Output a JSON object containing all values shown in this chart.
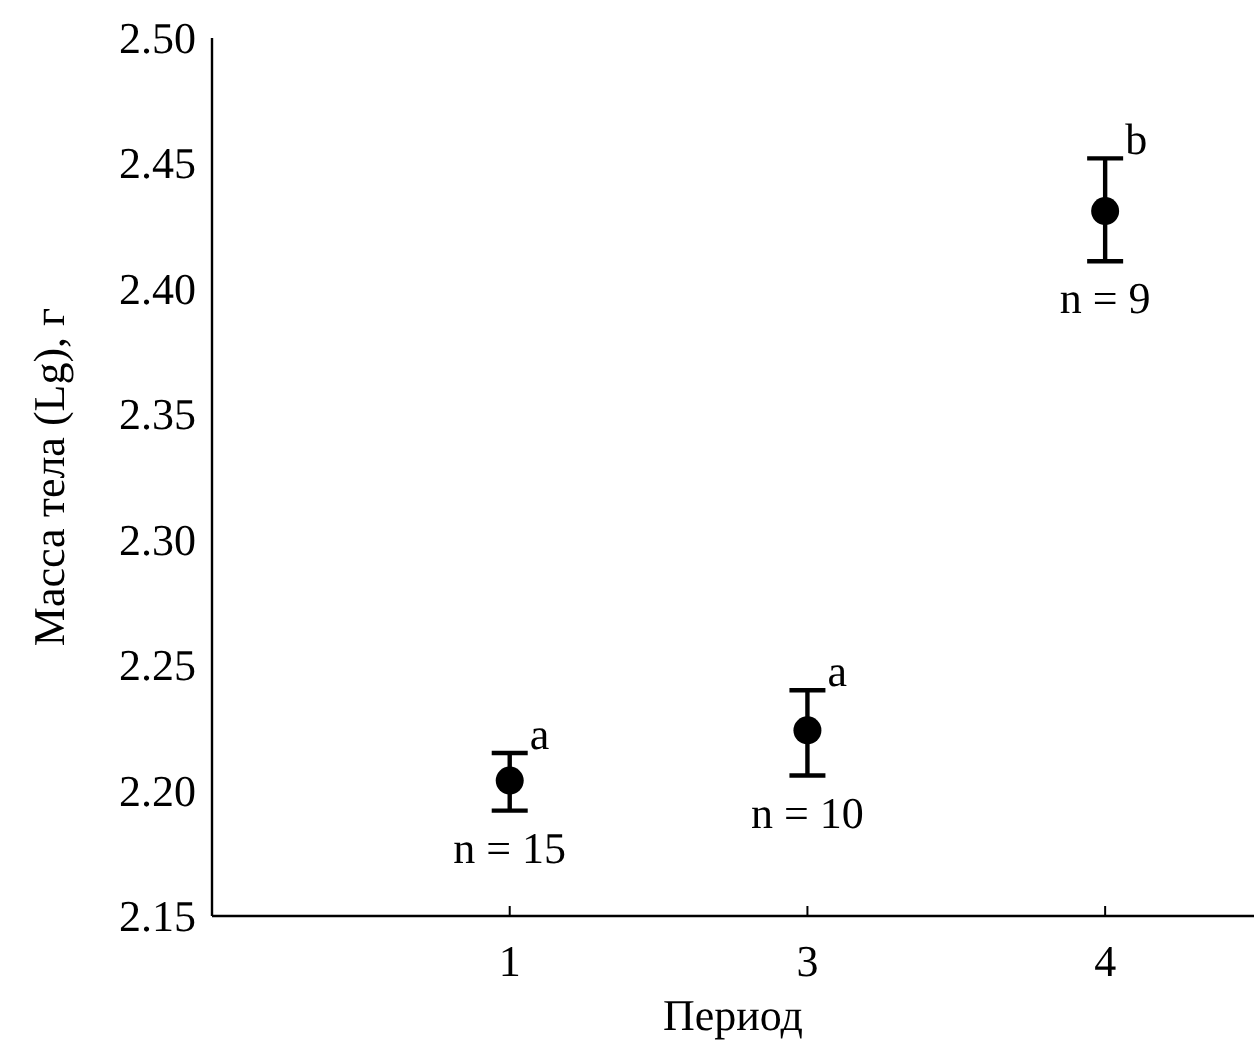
{
  "chart_data": {
    "type": "scatter",
    "xlabel": "Период",
    "ylabel": "Масса тела (Lg), г",
    "categories": [
      "1",
      "3",
      "4"
    ],
    "values": [
      2.204,
      2.224,
      2.431
    ],
    "errors": [
      [
        2.192,
        2.215
      ],
      [
        2.206,
        2.24
      ],
      [
        2.411,
        2.452
      ]
    ],
    "color": "#000000",
    "marker": "circle",
    "ylim": [
      2.15,
      2.5
    ],
    "yticks": [
      {
        "value": 2.15,
        "label": "2.15"
      },
      {
        "value": 2.2,
        "label": "2.20"
      },
      {
        "value": 2.25,
        "label": "2.25"
      },
      {
        "value": 2.3,
        "label": "2.30"
      },
      {
        "value": 2.35,
        "label": "2.35"
      },
      {
        "value": 2.4,
        "label": "2.40"
      },
      {
        "value": 2.45,
        "label": "2.45"
      },
      {
        "value": 2.5,
        "label": "2.50"
      }
    ],
    "grid": false,
    "annotations": [
      {
        "text": "a",
        "x": "1",
        "y": 2.215
      },
      {
        "text": "n = 15",
        "x": "1",
        "y": 2.192
      },
      {
        "text": "a",
        "x": "3",
        "y": 2.24
      },
      {
        "text": "n = 10",
        "x": "3",
        "y": 2.206
      },
      {
        "text": "b",
        "x": "4",
        "y": 2.452
      },
      {
        "text": "n = 9",
        "x": "4",
        "y": 2.411
      }
    ]
  }
}
